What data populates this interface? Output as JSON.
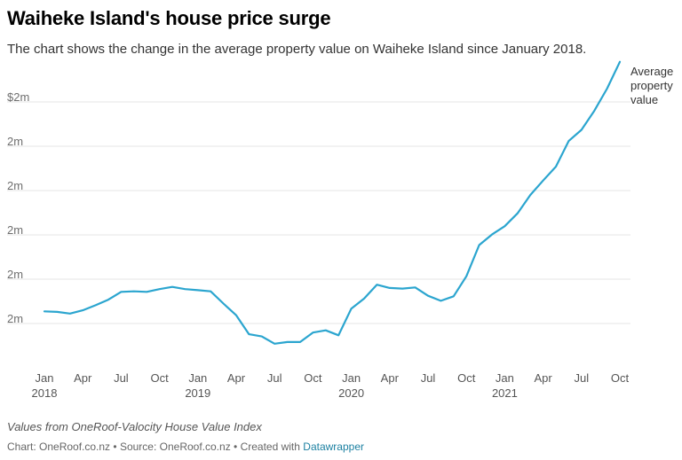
{
  "title": "Waiheke Island's house price surge",
  "subtitle": "The chart shows the change in the average property value on Waiheke Island since January 2018.",
  "notes": "Values from OneRoof-Valocity House Value Index",
  "footer": {
    "chart_credit": "Chart: OneRoof.co.nz",
    "separator": "•",
    "source": "Source: OneRoof.co.nz",
    "created_with_prefix": "Created with",
    "tool": "Datawrapper"
  },
  "chart_data": {
    "type": "line",
    "title": "Waiheke Island's house price surge",
    "xlabel": "",
    "ylabel": "",
    "y_tick_labels": [
      "$2m",
      "2m",
      "2m",
      "2m",
      "2m",
      "2m"
    ],
    "x_tick_labels": [
      {
        "label": "Jan",
        "year": "2018"
      },
      {
        "label": "Apr",
        "year": ""
      },
      {
        "label": "Jul",
        "year": ""
      },
      {
        "label": "Oct",
        "year": ""
      },
      {
        "label": "Jan",
        "year": "2019"
      },
      {
        "label": "Apr",
        "year": ""
      },
      {
        "label": "Jul",
        "year": ""
      },
      {
        "label": "Oct",
        "year": ""
      },
      {
        "label": "Jan",
        "year": "2020"
      },
      {
        "label": "Apr",
        "year": ""
      },
      {
        "label": "Jul",
        "year": ""
      },
      {
        "label": "Oct",
        "year": ""
      },
      {
        "label": "Jan",
        "year": "2021"
      },
      {
        "label": "Apr",
        "year": ""
      },
      {
        "label": "Jul",
        "year": ""
      },
      {
        "label": "Oct",
        "year": ""
      }
    ],
    "grid": "horizontal",
    "color": "#2ba5cf",
    "ylim": [
      1.55,
      2.08
    ],
    "series": [
      {
        "name": "Average property value",
        "x": [
          "2018-01",
          "2018-02",
          "2018-03",
          "2018-04",
          "2018-05",
          "2018-06",
          "2018-07",
          "2018-08",
          "2018-09",
          "2018-10",
          "2018-11",
          "2018-12",
          "2019-01",
          "2019-02",
          "2019-03",
          "2019-04",
          "2019-05",
          "2019-06",
          "2019-07",
          "2019-08",
          "2019-09",
          "2019-10",
          "2019-11",
          "2019-12",
          "2020-01",
          "2020-02",
          "2020-03",
          "2020-04",
          "2020-05",
          "2020-06",
          "2020-07",
          "2020-08",
          "2020-09",
          "2020-10",
          "2020-11",
          "2020-12",
          "2021-01",
          "2021-02",
          "2021-03",
          "2021-04",
          "2021-05",
          "2021-06",
          "2021-07",
          "2021-08",
          "2021-09",
          "2021-10"
        ],
        "values": [
          1.645,
          1.644,
          1.641,
          1.647,
          1.656,
          1.666,
          1.68,
          1.681,
          1.68,
          1.685,
          1.689,
          1.685,
          1.683,
          1.681,
          1.659,
          1.638,
          1.604,
          1.6,
          1.587,
          1.59,
          1.59,
          1.607,
          1.611,
          1.602,
          1.65,
          1.668,
          1.693,
          1.687,
          1.686,
          1.688,
          1.673,
          1.664,
          1.672,
          1.708,
          1.764,
          1.783,
          1.798,
          1.821,
          1.854,
          1.88,
          1.905,
          1.951,
          1.971,
          2.005,
          2.045,
          2.093
        ]
      }
    ]
  }
}
